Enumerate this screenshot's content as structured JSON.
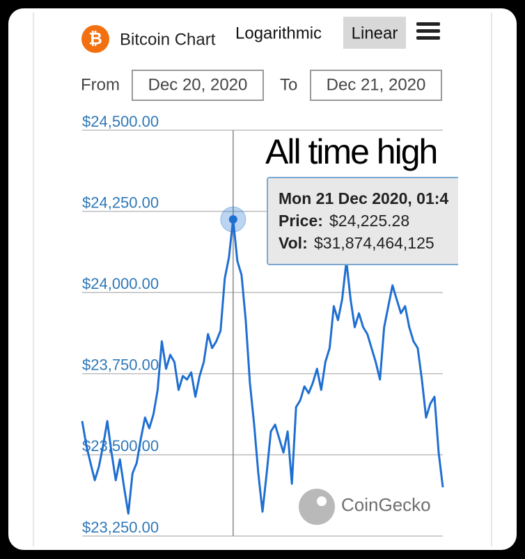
{
  "header": {
    "title": "Bitcoin Chart",
    "scale_options": [
      "Logarithmic",
      "Linear"
    ],
    "from_label": "From",
    "from_date": "Dec 20, 2020",
    "to_label": "To",
    "to_date": "Dec 21, 2020"
  },
  "chart_data": {
    "type": "line",
    "color": "#1f6fd1",
    "grid": true,
    "annotation": "All time high",
    "watermark": "CoinGecko",
    "tooltip": {
      "date": "Mon 21 Dec 2020, 01:4",
      "price_label": "Price:",
      "price": "$24,225.28",
      "vol_label": "Vol:",
      "vol": "$31,874,464,125"
    },
    "ylim": [
      23250,
      24500
    ],
    "yticks": [
      {
        "value": 23250,
        "label": "$23,250.00"
      },
      {
        "value": 23500,
        "label": "$23,500.00"
      },
      {
        "value": 23750,
        "label": "$23,750.00"
      },
      {
        "value": 24000,
        "label": "$24,000.00"
      },
      {
        "value": 24250,
        "label": "$24,250.00"
      },
      {
        "value": 24500,
        "label": "$24,500.00"
      }
    ],
    "values": [
      23604,
      23529,
      23475,
      23422,
      23464,
      23529,
      23604,
      23507,
      23422,
      23486,
      23400,
      23319,
      23443,
      23475,
      23550,
      23615,
      23582,
      23625,
      23700,
      23850,
      23765,
      23808,
      23786,
      23700,
      23743,
      23732,
      23754,
      23679,
      23743,
      23786,
      23872,
      23829,
      23850,
      23883,
      24043,
      24108,
      24225.28,
      24097,
      24054,
      23915,
      23722,
      23593,
      23443,
      23325,
      23443,
      23572,
      23593,
      23550,
      23507,
      23572,
      23411,
      23647,
      23668,
      23711,
      23690,
      23722,
      23765,
      23700,
      23786,
      23829,
      23958,
      23915,
      23979,
      24097,
      23979,
      23893,
      23936,
      23893,
      23872,
      23829,
      23786,
      23732,
      23893,
      23958,
      24022,
      23979,
      23936,
      23958,
      23893,
      23850,
      23829,
      23732,
      23615,
      23657,
      23679,
      23507,
      23400
    ]
  }
}
